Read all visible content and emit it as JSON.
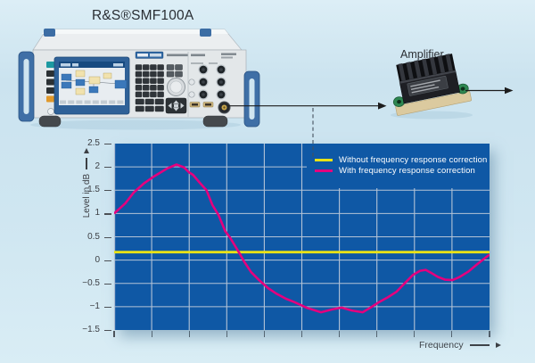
{
  "header": {
    "title": "R&S®SMF100A"
  },
  "diagram": {
    "generator": {
      "label": "R&S®SMF100A",
      "device": "signal generator"
    },
    "amplifier": {
      "label": "Amplifier"
    },
    "connections": {
      "generator_to_amplifier": "solid arrow",
      "amplifier_output": "solid arrow to the right",
      "tap_to_chart": "dashed vertical line from signal path down to chart"
    }
  },
  "chart_data": {
    "type": "line",
    "title": "",
    "ylabel": "Level in dB",
    "xlabel": "Frequency",
    "ylim": [
      -1.5,
      2.5
    ],
    "yticks": [
      2.5,
      2,
      1.5,
      1,
      0.5,
      0,
      -0.5,
      -1,
      -1.5
    ],
    "ytick_labels": [
      "2.5",
      "2",
      "1.5",
      "1",
      "0.5",
      "0",
      "−0.5",
      "−1",
      "−1.5"
    ],
    "x_axis": {
      "label": "Frequency",
      "numeric_labels": false,
      "tick_count": 11
    },
    "grid": true,
    "plot_bg": "#0f58a5",
    "grid_color": "#b4c3d6",
    "legend_position": "top-right",
    "series": [
      {
        "name": "Without frequency response correction",
        "color": "#e9e216",
        "stroke_width": 2.8,
        "points": [
          [
            0,
            0.17
          ],
          [
            1,
            0.17
          ]
        ]
      },
      {
        "name": "With frequency response correction",
        "color": "#e4007e",
        "stroke_width": 2.6,
        "points": [
          [
            0.0,
            1.0
          ],
          [
            0.03,
            1.22
          ],
          [
            0.052,
            1.45
          ],
          [
            0.08,
            1.65
          ],
          [
            0.107,
            1.8
          ],
          [
            0.14,
            1.96
          ],
          [
            0.166,
            2.05
          ],
          [
            0.186,
            1.99
          ],
          [
            0.2,
            1.88
          ],
          [
            0.21,
            1.83
          ],
          [
            0.228,
            1.66
          ],
          [
            0.246,
            1.5
          ],
          [
            0.262,
            1.18
          ],
          [
            0.278,
            0.97
          ],
          [
            0.296,
            0.62
          ],
          [
            0.309,
            0.48
          ],
          [
            0.332,
            0.17
          ],
          [
            0.347,
            -0.04
          ],
          [
            0.365,
            -0.26
          ],
          [
            0.385,
            -0.42
          ],
          [
            0.41,
            -0.6
          ],
          [
            0.432,
            -0.72
          ],
          [
            0.458,
            -0.83
          ],
          [
            0.48,
            -0.9
          ],
          [
            0.515,
            -1.03
          ],
          [
            0.551,
            -1.12
          ],
          [
            0.58,
            -1.06
          ],
          [
            0.606,
            -1.02
          ],
          [
            0.633,
            -1.08
          ],
          [
            0.662,
            -1.12
          ],
          [
            0.685,
            -1.01
          ],
          [
            0.706,
            -0.9
          ],
          [
            0.729,
            -0.8
          ],
          [
            0.752,
            -0.68
          ],
          [
            0.775,
            -0.49
          ],
          [
            0.796,
            -0.32
          ],
          [
            0.815,
            -0.23
          ],
          [
            0.83,
            -0.21
          ],
          [
            0.846,
            -0.28
          ],
          [
            0.862,
            -0.36
          ],
          [
            0.882,
            -0.42
          ],
          [
            0.901,
            -0.43
          ],
          [
            0.921,
            -0.36
          ],
          [
            0.943,
            -0.25
          ],
          [
            0.964,
            -0.11
          ],
          [
            0.984,
            0.02
          ],
          [
            1.0,
            0.12
          ]
        ]
      }
    ]
  },
  "colors": {
    "background": "#cfe6f1",
    "chart_bg": "#0f58a5",
    "grid": "#b4c3d6",
    "curve_yellow": "#e9e216",
    "curve_magenta": "#e4007e",
    "rs_blue": "#3f6fa6"
  }
}
